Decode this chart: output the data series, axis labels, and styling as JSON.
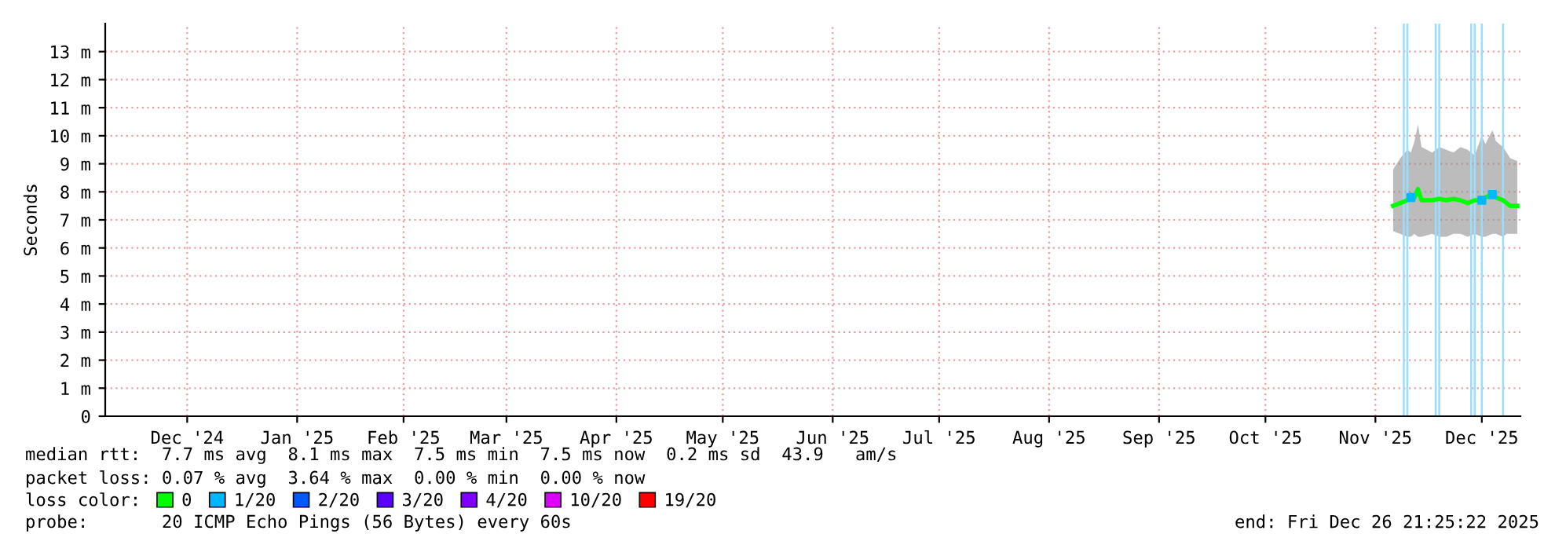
{
  "chart_data": {
    "type": "line",
    "ylabel": "Seconds",
    "legend_title": "loss color:",
    "x": [
      "2025-11-21",
      "2025-11-23",
      "2025-11-25",
      "2025-11-26",
      "2025-11-27",
      "2025-11-28",
      "2025-11-29",
      "2025-12-02",
      "2025-12-04",
      "2025-12-06",
      "2025-12-08",
      "2025-12-10",
      "2025-12-12",
      "2025-12-14",
      "2025-12-16",
      "2025-12-17",
      "2025-12-19",
      "2025-12-20",
      "2025-12-22",
      "2025-12-23",
      "2025-12-24",
      "2025-12-26"
    ],
    "series": [
      {
        "name": "0",
        "color": "#00ff00",
        "values": [
          7.5,
          7.6,
          7.7,
          7.9,
          7.8,
          8.1,
          7.7,
          7.7,
          7.75,
          7.7,
          7.75,
          7.7,
          7.6,
          7.7,
          7.7,
          7.8,
          7.9,
          7.8,
          7.7,
          7.6,
          7.5,
          7.5
        ],
        "lower": [
          6.6,
          6.5,
          6.4,
          6.4,
          6.5,
          6.4,
          6.4,
          6.5,
          6.4,
          6.4,
          6.5,
          6.5,
          6.4,
          6.5,
          6.4,
          6.4,
          6.5,
          6.5,
          6.4,
          6.5,
          6.5,
          6.5
        ],
        "upper": [
          8.8,
          9.2,
          9.5,
          9.4,
          9.8,
          10.4,
          9.6,
          9.4,
          9.6,
          9.5,
          9.4,
          9.6,
          9.5,
          9.3,
          10.0,
          9.7,
          10.2,
          9.8,
          9.6,
          9.4,
          9.2,
          9.1
        ]
      },
      {
        "name": "1/20",
        "color": "#00b8ff",
        "type": "scatter",
        "x": [
          "2025-11-26",
          "2025-12-16",
          "2025-12-19"
        ],
        "values": [
          7.8,
          7.7,
          7.9
        ]
      },
      {
        "name": "2/20",
        "color": "#0059ff",
        "type": "scatter",
        "values": [
          null,
          null,
          null,
          null,
          null,
          null,
          null,
          null,
          null,
          null,
          null,
          null,
          null,
          null,
          null,
          null,
          null,
          null,
          null,
          null,
          null,
          null
        ]
      },
      {
        "name": "3/20",
        "color": "#5e00ff",
        "type": "scatter",
        "values": [
          null,
          null,
          null,
          null,
          null,
          null,
          null,
          null,
          null,
          null,
          null,
          null,
          null,
          null,
          null,
          null,
          null,
          null,
          null,
          null,
          null,
          null
        ]
      },
      {
        "name": "4/20",
        "color": "#7e00ff",
        "type": "scatter",
        "values": [
          null,
          null,
          null,
          null,
          null,
          null,
          null,
          null,
          null,
          null,
          null,
          null,
          null,
          null,
          null,
          null,
          null,
          null,
          null,
          null,
          null,
          null
        ]
      },
      {
        "name": "10/20",
        "color": "#dd00ff",
        "type": "scatter",
        "values": [
          null,
          null,
          null,
          null,
          null,
          null,
          null,
          null,
          null,
          null,
          null,
          null,
          null,
          null,
          null,
          null,
          null,
          null,
          null,
          null,
          null,
          null
        ]
      },
      {
        "name": "19/20",
        "color": "#ff0000",
        "type": "scatter",
        "values": [
          null,
          null,
          null,
          null,
          null,
          null,
          null,
          null,
          null,
          null,
          null,
          null,
          null,
          null,
          null,
          null,
          null,
          null,
          null,
          null,
          null,
          null
        ]
      }
    ],
    "xlim": [
      "2024-11-22T21:25",
      "2025-12-26T21:25"
    ],
    "xticks": [
      {
        "value": "2024-12-16",
        "label": "Dec '24"
      },
      {
        "value": "2025-01-16",
        "label": "Jan '25"
      },
      {
        "value": "2025-02-15",
        "label": "Feb '25"
      },
      {
        "value": "2025-03-16",
        "label": "Mar '25"
      },
      {
        "value": "2025-04-16",
        "label": "Apr '25"
      },
      {
        "value": "2025-05-16",
        "label": "May '25"
      },
      {
        "value": "2025-06-16",
        "label": "Jun '25"
      },
      {
        "value": "2025-07-16",
        "label": "Jul '25"
      },
      {
        "value": "2025-08-16",
        "label": "Aug '25"
      },
      {
        "value": "2025-09-16",
        "label": "Sep '25"
      },
      {
        "value": "2025-10-16",
        "label": "Oct '25"
      },
      {
        "value": "2025-11-16",
        "label": "Nov '25"
      },
      {
        "value": "2025-12-16",
        "label": "Dec '25"
      }
    ],
    "ylim": [
      0,
      14
    ],
    "yticks": [
      0,
      {
        "value": 1,
        "label": "1 m"
      },
      {
        "value": 2,
        "label": "2 m"
      },
      {
        "value": 3,
        "label": "3 m"
      },
      {
        "value": 4,
        "label": "4 m"
      },
      {
        "value": 5,
        "label": "5 m"
      },
      {
        "value": 6,
        "label": "6 m"
      },
      {
        "value": 7,
        "label": "7 m"
      },
      {
        "value": 8,
        "label": "8 m"
      },
      {
        "value": 9,
        "label": "9 m"
      },
      {
        "value": 10,
        "label": "10 m"
      },
      {
        "value": 11,
        "label": "11 m"
      },
      {
        "value": 12,
        "label": "12 m"
      },
      {
        "value": 13,
        "label": "13 m"
      }
    ],
    "ref_lines": [
      {
        "axis": "x",
        "value": "2025-11-24",
        "color": "#99ddff"
      },
      {
        "axis": "x",
        "value": "2025-11-25",
        "color": "#99ddff"
      },
      {
        "axis": "x",
        "value": "2025-12-03",
        "color": "#99ddff"
      },
      {
        "axis": "x",
        "value": "2025-12-04",
        "color": "#99ddff"
      },
      {
        "axis": "x",
        "value": "2025-12-13",
        "color": "#99ddff"
      },
      {
        "axis": "x",
        "value": "2025-12-14",
        "color": "#99ddff"
      },
      {
        "axis": "x",
        "value": "2025-12-16",
        "color": "#99ddff"
      },
      {
        "axis": "x",
        "value": "2025-12-22",
        "color": "#99ddff"
      }
    ],
    "grid": true,
    "legend": "bottom",
    "annotations": [
      "median rtt:  7.7 ms avg  8.1 ms max  7.5 ms min  7.5 ms now  0.2 ms sd  43.9   am/s",
      "packet loss: 0.07 % avg  3.64 % max  0.00 % min  0.00 % now",
      "probe:       20 ICMP Echo Pings (56 Bytes) every 60s",
      "end: Fri Dec 26 21:25:22 2025"
    ]
  }
}
